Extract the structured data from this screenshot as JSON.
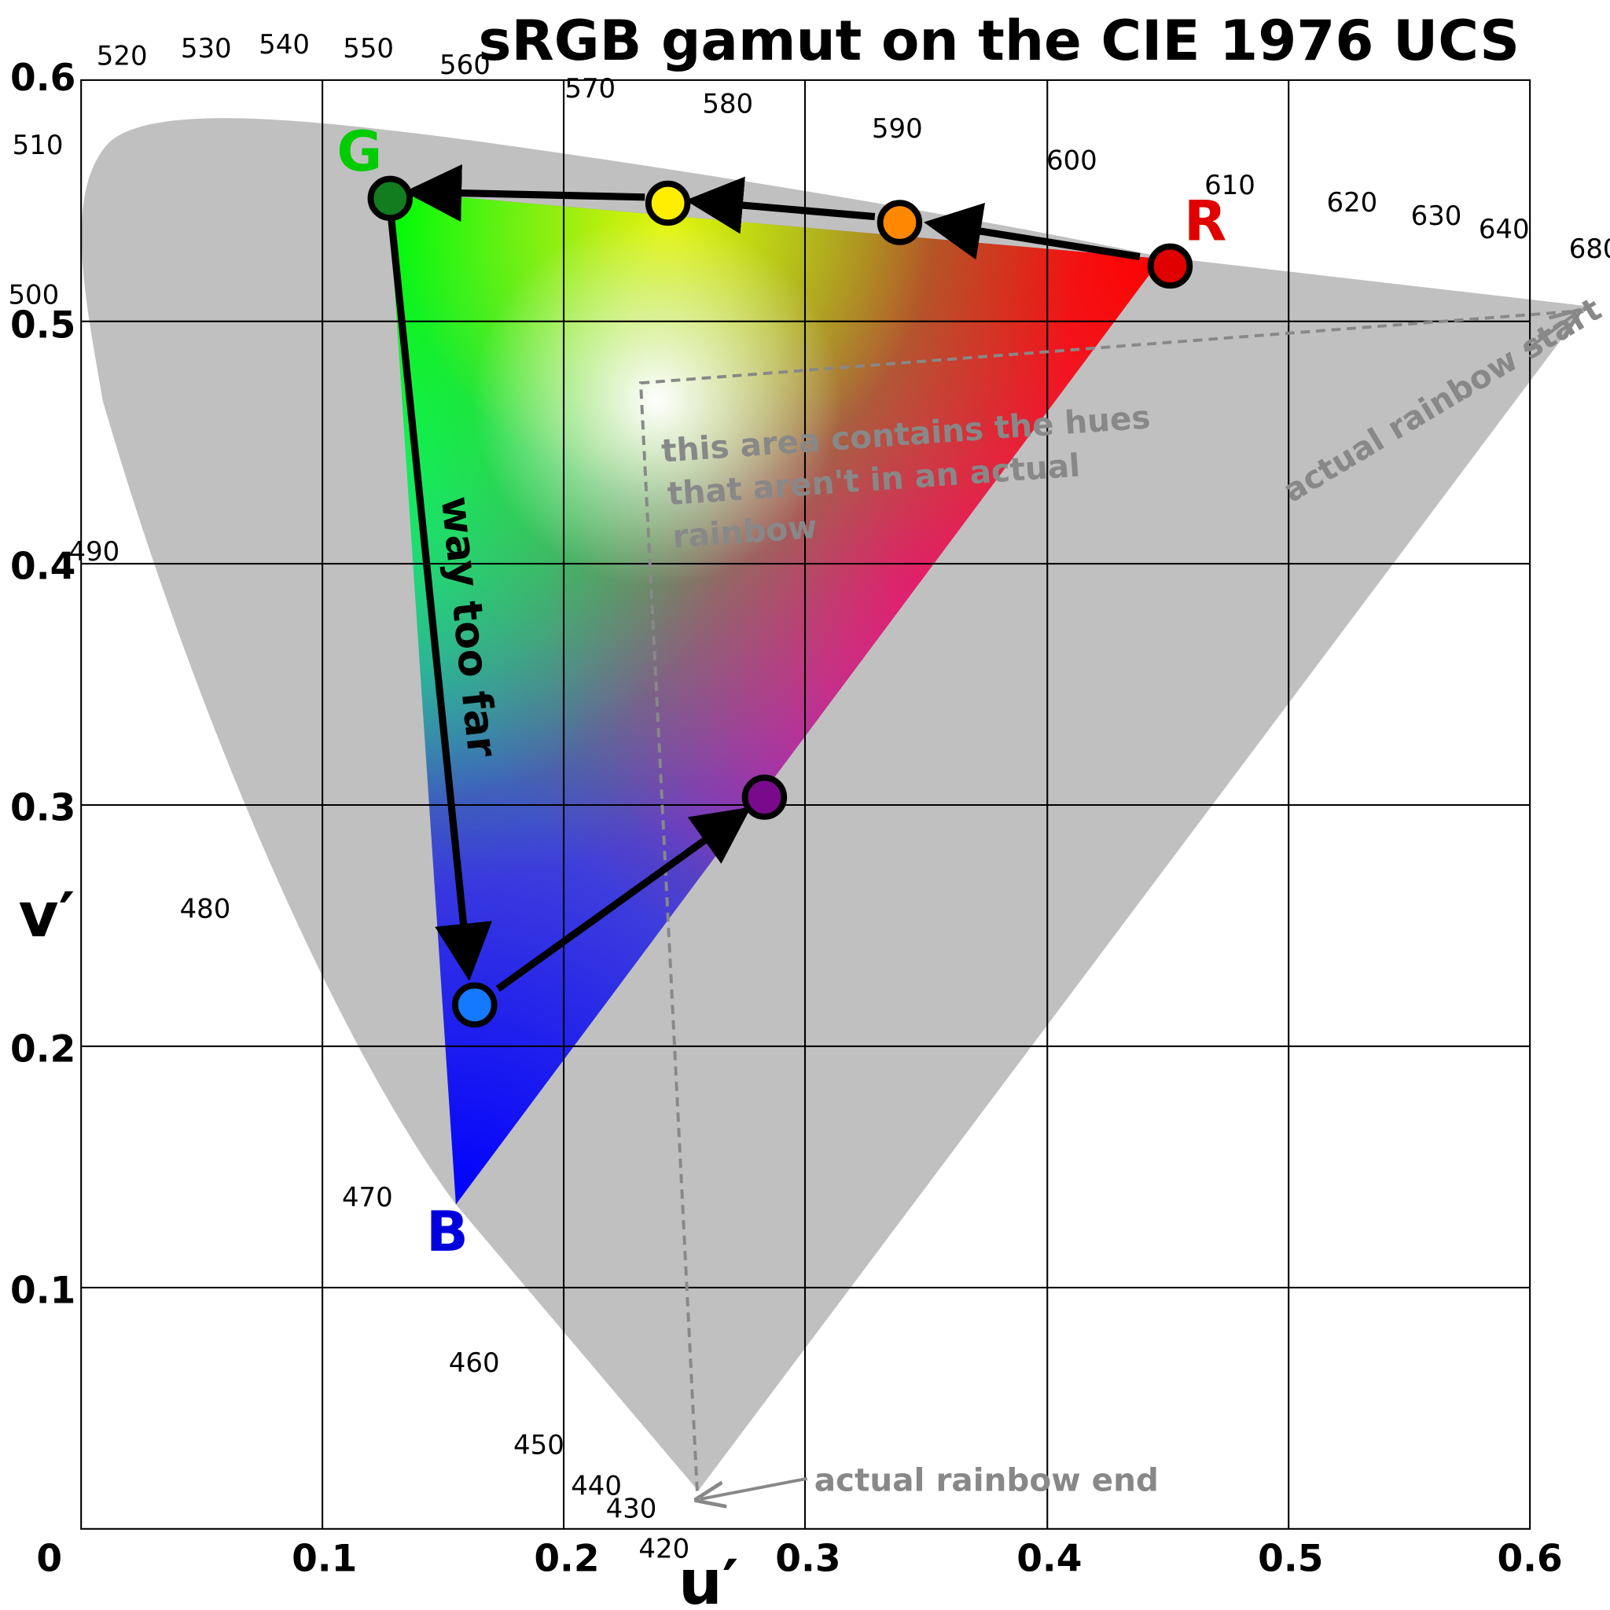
{
  "title": "sRGB gamut on the CIE 1976 UCS",
  "axes": {
    "x_label": "u′",
    "y_label": "v′",
    "x_ticks": [
      "0",
      "0.1",
      "0.2",
      "0.3",
      "0.4",
      "0.5",
      "0.6"
    ],
    "y_ticks": [
      "0.1",
      "0.2",
      "0.3",
      "0.4",
      "0.5",
      "0.6"
    ],
    "x_range": [
      0,
      0.6
    ],
    "y_range": [
      0,
      0.6
    ],
    "grid": true
  },
  "wavelength_labels": [
    "420",
    "430",
    "440",
    "450",
    "460",
    "470",
    "480",
    "490",
    "500",
    "510",
    "520",
    "530",
    "540",
    "550",
    "560",
    "570",
    "580",
    "590",
    "600",
    "610",
    "620",
    "630",
    "640",
    "680"
  ],
  "primaries": {
    "red": {
      "label": "R",
      "u": 0.451,
      "v": 0.523,
      "color": "#e00000"
    },
    "green": {
      "label": "G",
      "u": 0.125,
      "v": 0.563,
      "color": "#00cc00"
    },
    "blue": {
      "label": "B",
      "u": 0.175,
      "v": 0.158,
      "color": "#0000dd"
    }
  },
  "hue_points": [
    {
      "name": "red",
      "u": 0.451,
      "v": 0.523,
      "color": "#e00000"
    },
    {
      "name": "orange",
      "u": 0.339,
      "v": 0.541,
      "color": "#ff8800"
    },
    {
      "name": "yellow",
      "u": 0.243,
      "v": 0.549,
      "color": "#ffee00"
    },
    {
      "name": "green",
      "u": 0.128,
      "v": 0.551,
      "color": "#117d1e"
    },
    {
      "name": "blue",
      "u": 0.163,
      "v": 0.217,
      "color": "#1479ff"
    },
    {
      "name": "purple",
      "u": 0.283,
      "v": 0.303,
      "color": "#7a0a8c"
    }
  ],
  "annotations": {
    "way_too_far": "way too far",
    "non_rainbow_note": [
      "this area contains the hues",
      "that aren't in an actual",
      "rainbow"
    ],
    "rainbow_start": "actual rainbow start",
    "rainbow_end": "actual rainbow end"
  },
  "colors": {
    "locus_fill": "#c0c0c0",
    "annotation_gray": "#888888",
    "grid": "#000000"
  }
}
